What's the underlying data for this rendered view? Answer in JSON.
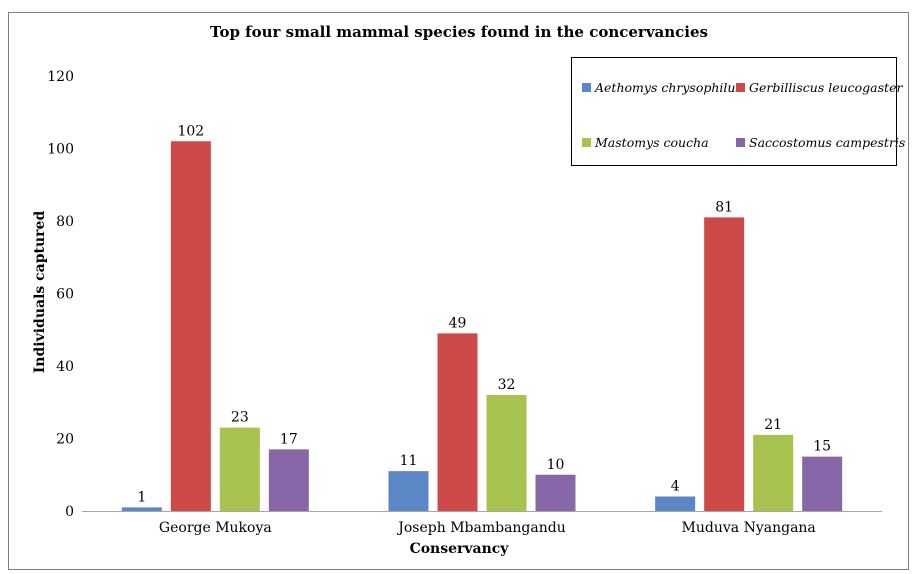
{
  "chart_data": {
    "type": "bar",
    "title": "Top four small mammal species found in the concervancies",
    "xlabel": "Conservancy",
    "ylabel": "Individuals captured",
    "ylim": [
      0,
      120
    ],
    "yticks": [
      "0",
      "20",
      "40",
      "60",
      "80",
      "100",
      "120"
    ],
    "grid": false,
    "legend_position": "top-right",
    "categories": [
      "George Mukoya",
      "Joseph Mbambangandu",
      "Muduva Nyangana"
    ],
    "series": [
      {
        "name": "Aethomys chrysophilus",
        "color": "#5b87c6",
        "values": [
          1,
          11,
          4
        ]
      },
      {
        "name": "Gerbilliscus leucogaster",
        "color": "#cc4a47",
        "values": [
          102,
          49,
          81
        ]
      },
      {
        "name": "Mastomys coucha",
        "color": "#a7c24f",
        "values": [
          23,
          32,
          21
        ]
      },
      {
        "name": "Saccostomus campestris",
        "color": "#8767a8",
        "values": [
          17,
          10,
          15
        ]
      }
    ]
  }
}
